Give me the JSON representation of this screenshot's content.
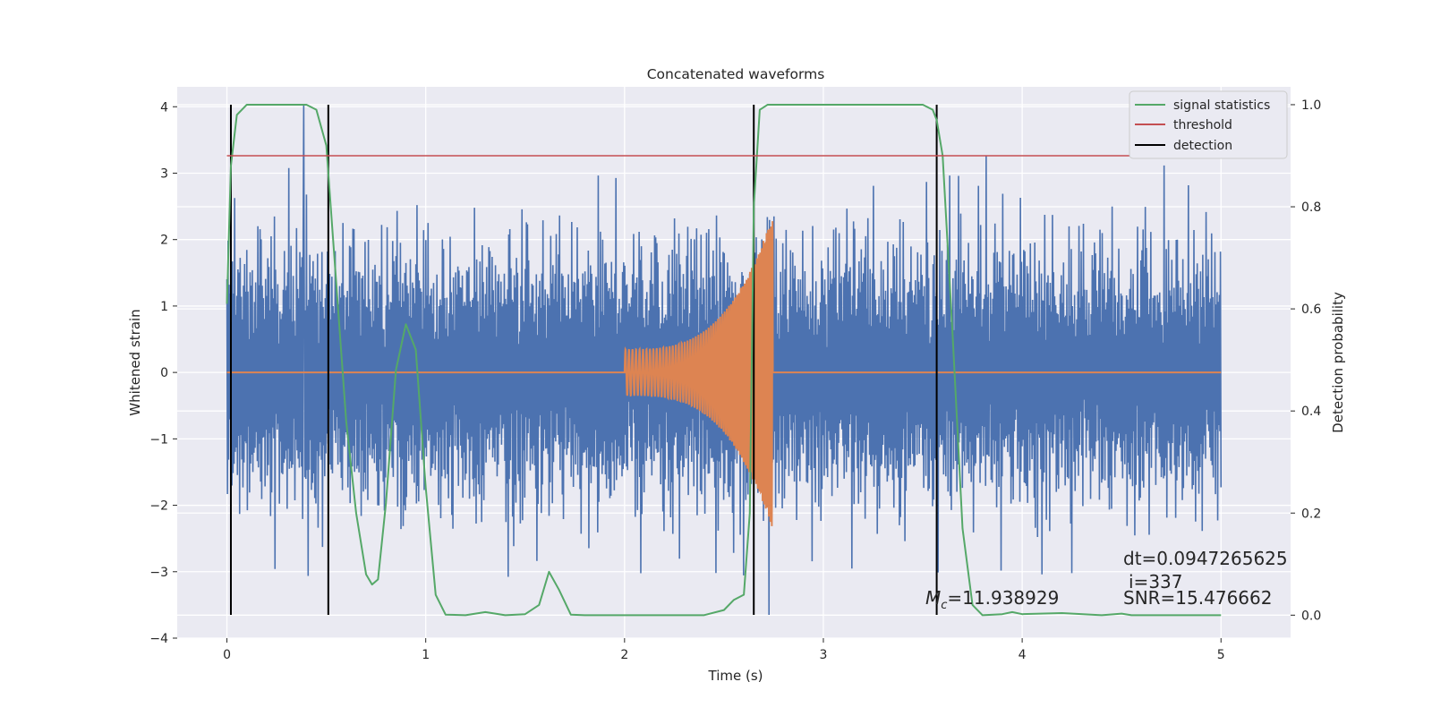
{
  "chart_data": {
    "type": "line",
    "title": "Concatenated waveforms",
    "xlabel": "Time (s)",
    "ylabel_left": "Whitened strain",
    "ylabel_right": "Detection probability",
    "xlim": [
      -0.25,
      5.35
    ],
    "ylim_left": [
      -4.0,
      4.3
    ],
    "ylim_right": [
      -0.045,
      1.035
    ],
    "x_ticks": [
      0,
      1,
      2,
      3,
      4,
      5
    ],
    "y_ticks_left": [
      -4,
      -3,
      -2,
      -1,
      0,
      1,
      2,
      3,
      4
    ],
    "y_ticks_right": [
      0.0,
      0.2,
      0.4,
      0.6,
      0.8,
      1.0
    ],
    "grid": true,
    "legend_position": "top-right",
    "legend": [
      {
        "label": "signal statistics",
        "color": "#55a868"
      },
      {
        "label": "threshold",
        "color": "#c44e52"
      },
      {
        "label": "detection",
        "color": "#000000"
      }
    ],
    "series": [
      {
        "name": "signal statistics",
        "axis": "right",
        "color": "#55a868",
        "x": [
          0.0,
          0.02,
          0.05,
          0.1,
          0.2,
          0.3,
          0.4,
          0.45,
          0.5,
          0.55,
          0.6,
          0.65,
          0.7,
          0.73,
          0.76,
          0.8,
          0.85,
          0.9,
          0.95,
          1.0,
          1.05,
          1.1,
          1.2,
          1.3,
          1.4,
          1.5,
          1.57,
          1.62,
          1.67,
          1.73,
          1.8,
          2.0,
          2.2,
          2.4,
          2.5,
          2.55,
          2.6,
          2.63,
          2.65,
          2.68,
          2.72,
          2.8,
          3.0,
          3.2,
          3.4,
          3.5,
          3.55,
          3.57,
          3.6,
          3.65,
          3.7,
          3.75,
          3.8,
          3.9,
          3.95,
          4.0,
          4.2,
          4.4,
          4.5,
          4.55,
          4.6,
          5.0
        ],
        "values": [
          0.61,
          0.88,
          0.98,
          1.0,
          1.0,
          1.0,
          1.0,
          0.99,
          0.92,
          0.65,
          0.38,
          0.2,
          0.08,
          0.06,
          0.07,
          0.22,
          0.48,
          0.57,
          0.52,
          0.25,
          0.04,
          0.001,
          0.0,
          0.006,
          0.0,
          0.002,
          0.02,
          0.085,
          0.05,
          0.001,
          0.0,
          0.0,
          0.0,
          0.0,
          0.01,
          0.03,
          0.04,
          0.2,
          0.8,
          0.99,
          1.0,
          1.0,
          1.0,
          1.0,
          1.0,
          1.0,
          0.99,
          0.97,
          0.9,
          0.55,
          0.17,
          0.02,
          0.0,
          0.002,
          0.006,
          0.002,
          0.004,
          0.0,
          0.003,
          0.0,
          0.0,
          0.0
        ]
      },
      {
        "name": "threshold",
        "axis": "right",
        "color": "#c44e52",
        "x": [
          0.0,
          5.1
        ],
        "values": [
          0.9,
          0.9
        ]
      }
    ],
    "strain": {
      "color": "#4c72b0",
      "x_range": [
        0.0,
        5.0
      ],
      "samples": 1800,
      "typical_range": [
        -2.0,
        2.1
      ],
      "max": 4.03,
      "min": -3.65
    },
    "template": {
      "color": "#dd8452",
      "x_range": [
        2.0,
        2.75
      ],
      "amplitude_start": 0.35,
      "amplitude_end": 2.4,
      "min": -2.7
    },
    "detections_x": [
      0.02,
      0.51,
      2.65,
      3.57
    ],
    "detection_color": "#000000",
    "annotations": [
      {
        "id": "dt",
        "text": "dt=0.0947265625"
      },
      {
        "id": "i",
        "text": "i=337"
      },
      {
        "id": "mc",
        "text": "=11.938929"
      },
      {
        "id": "snr",
        "text": "SNR=15.476662"
      }
    ]
  }
}
